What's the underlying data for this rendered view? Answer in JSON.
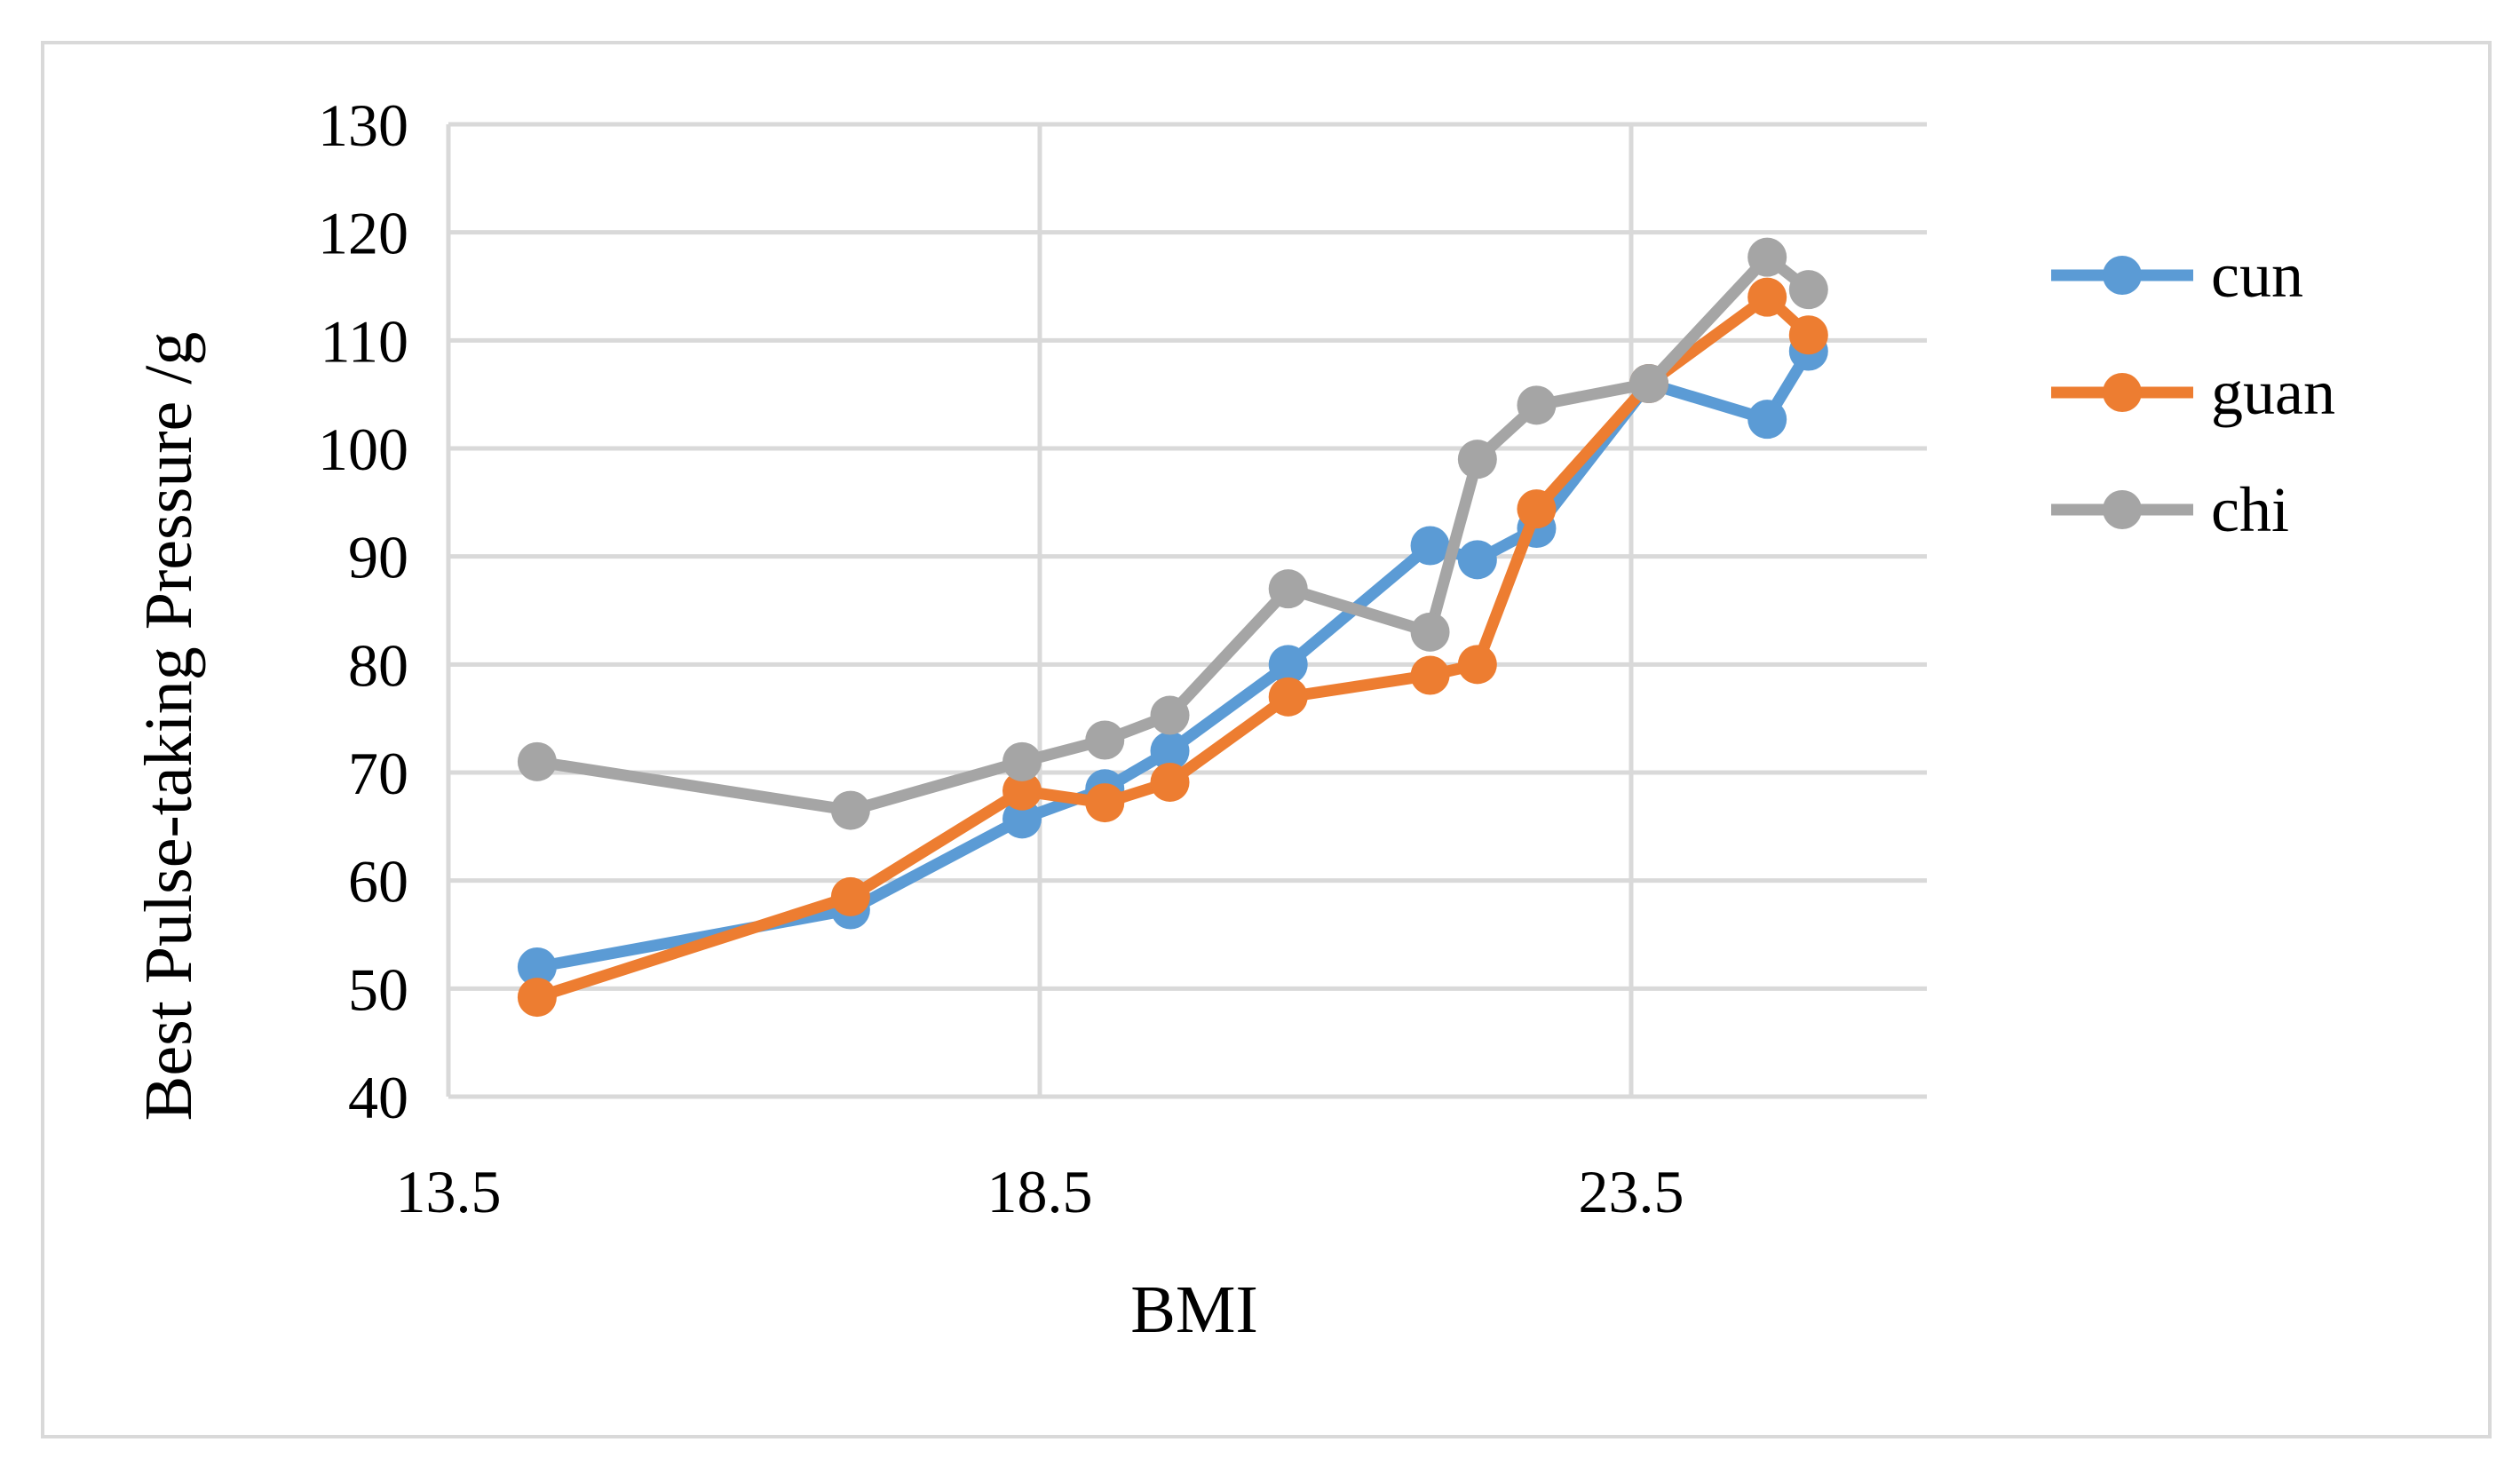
{
  "colors": {
    "cun": "#5b9bd5",
    "guan": "#ed7d31",
    "chi": "#a5a5a5",
    "grid": "#d9d9d9",
    "frame": "#d9d9d9"
  },
  "chart_data": {
    "type": "line",
    "title": "",
    "xlabel": "BMI",
    "ylabel": "Best Pulse-taking Pressure /g",
    "xlim": [
      13.5,
      26.0
    ],
    "ylim": [
      40,
      130
    ],
    "x_ticks": [
      13.5,
      18.5,
      23.5
    ],
    "x_tick_labels": [
      "13.5",
      "18.5",
      "23.5"
    ],
    "y_ticks": [
      40,
      50,
      60,
      70,
      80,
      90,
      100,
      110,
      120,
      130
    ],
    "y_tick_labels": [
      "40",
      "50",
      "60",
      "70",
      "80",
      "90",
      "100",
      "110",
      "120",
      "130"
    ],
    "grid": true,
    "legend_position": "right",
    "series": [
      {
        "name": "cun",
        "color_key": "cun",
        "x": [
          14.25,
          16.9,
          18.35,
          19.05,
          19.6,
          20.6,
          21.8,
          22.2,
          22.7,
          23.65,
          24.65,
          25.0
        ],
        "y": [
          52,
          57.3,
          65.7,
          68.5,
          72,
          80,
          91,
          89.7,
          92.6,
          106,
          102.7,
          109
        ]
      },
      {
        "name": "guan",
        "color_key": "guan",
        "x": [
          14.25,
          16.9,
          18.35,
          19.05,
          19.6,
          20.6,
          21.8,
          22.2,
          22.7,
          23.65,
          24.65,
          25.0
        ],
        "y": [
          49.2,
          58.5,
          68.3,
          67.2,
          69.1,
          77,
          79,
          80,
          94.4,
          106,
          114,
          110.5
        ]
      },
      {
        "name": "chi",
        "color_key": "chi",
        "x": [
          14.25,
          16.9,
          18.35,
          19.05,
          19.6,
          20.6,
          21.8,
          22.2,
          22.7,
          23.65,
          24.65,
          25.0
        ],
        "y": [
          71,
          66.5,
          71,
          73,
          75.3,
          87,
          83,
          99,
          104,
          106,
          117.7,
          114.7
        ]
      }
    ]
  }
}
